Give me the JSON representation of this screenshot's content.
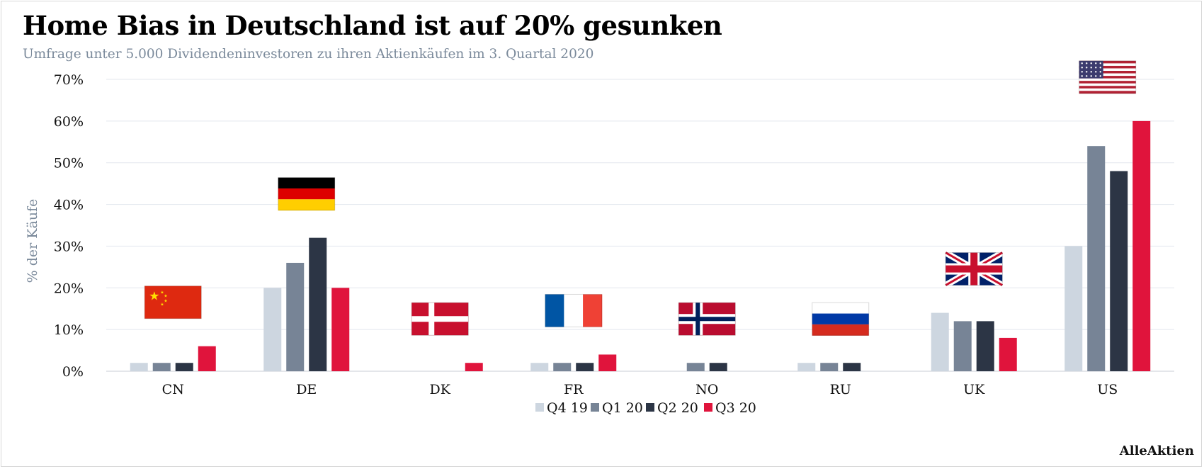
{
  "chart_data": {
    "type": "bar",
    "title": "Home Bias in Deutschland ist auf 20% gesunken",
    "subtitle": "Umfrage unter 5.000 Dividendeninvestoren  zu ihren Aktienkäufen im 3. Quartal 2020",
    "ylabel": "% der Käufe",
    "xlabel": "",
    "ylim": [
      0,
      70
    ],
    "yticks": [
      0,
      10,
      20,
      30,
      40,
      50,
      60,
      70
    ],
    "ytick_labels": [
      "0%",
      "10%",
      "20%",
      "30%",
      "40%",
      "50%",
      "60%",
      "70%"
    ],
    "grid": true,
    "legend_position": "bottom-center",
    "categories": [
      "CN",
      "DE",
      "DK",
      "FR",
      "NO",
      "RU",
      "UK",
      "US"
    ],
    "series": [
      {
        "name": "Q4 19",
        "color": "#cdd6e0",
        "values": [
          2,
          20,
          0,
          2,
          0,
          2,
          14,
          30
        ]
      },
      {
        "name": "Q1 20",
        "color": "#778496",
        "values": [
          2,
          26,
          0,
          2,
          2,
          2,
          12,
          54
        ]
      },
      {
        "name": "Q2 20",
        "color": "#2c3545",
        "values": [
          2,
          32,
          0,
          2,
          2,
          2,
          12,
          48
        ]
      },
      {
        "name": "Q3 20",
        "color": "#e0143c",
        "values": [
          6,
          20,
          2,
          4,
          0,
          0,
          8,
          60
        ]
      }
    ],
    "flags": [
      {
        "category": "CN",
        "icon": "china-flag-icon",
        "colors": [
          "#de2910",
          "#ffde00"
        ]
      },
      {
        "category": "DE",
        "icon": "germany-flag-icon",
        "colors": [
          "#000000",
          "#dd0000",
          "#ffce00"
        ]
      },
      {
        "category": "DK",
        "icon": "denmark-flag-icon",
        "colors": [
          "#c8102e",
          "#ffffff"
        ]
      },
      {
        "category": "FR",
        "icon": "france-flag-icon",
        "colors": [
          "#0055a4",
          "#ffffff",
          "#ef4135"
        ]
      },
      {
        "category": "NO",
        "icon": "norway-flag-icon",
        "colors": [
          "#ba0c2f",
          "#ffffff",
          "#00205b"
        ]
      },
      {
        "category": "RU",
        "icon": "russia-flag-icon",
        "colors": [
          "#ffffff",
          "#0039a6",
          "#d52b1e"
        ]
      },
      {
        "category": "UK",
        "icon": "uk-flag-icon",
        "colors": [
          "#012169",
          "#ffffff",
          "#c8102e"
        ]
      },
      {
        "category": "US",
        "icon": "usa-flag-icon",
        "colors": [
          "#b22234",
          "#ffffff",
          "#3c3b6e"
        ]
      }
    ]
  },
  "brand": "AlleAktien"
}
